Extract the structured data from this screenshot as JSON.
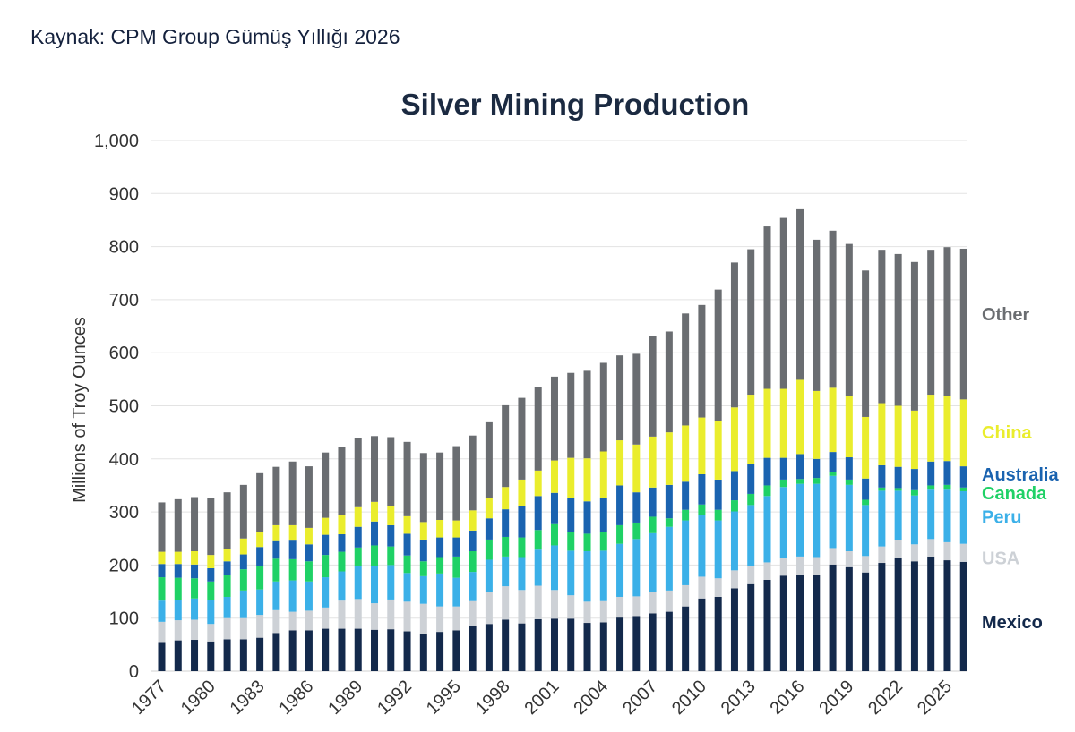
{
  "source_line": "Kaynak: CPM Group Gümüş Yıllığı 2026",
  "chart_data": {
    "type": "bar",
    "stacked": true,
    "title": "Silver Mining Production",
    "xlabel": "",
    "ylabel": "Millions of Troy Ounces",
    "ylim": [
      0,
      1000
    ],
    "yticks": [
      0,
      100,
      200,
      300,
      400,
      500,
      600,
      700,
      800,
      900,
      1000
    ],
    "ytick_labels": [
      "0",
      "100",
      "200",
      "300",
      "400",
      "500",
      "600",
      "700",
      "800",
      "900",
      "1,000"
    ],
    "grid": true,
    "legend_position": "right",
    "categories": [
      1977,
      1978,
      1979,
      1980,
      1981,
      1982,
      1983,
      1984,
      1985,
      1986,
      1987,
      1988,
      1989,
      1990,
      1991,
      1992,
      1993,
      1994,
      1995,
      1996,
      1997,
      1998,
      1999,
      2000,
      2001,
      2002,
      2003,
      2004,
      2005,
      2006,
      2007,
      2008,
      2009,
      2010,
      2011,
      2012,
      2013,
      2014,
      2015,
      2016,
      2017,
      2018,
      2019,
      2020,
      2021,
      2022,
      2023,
      2024,
      2025,
      2026
    ],
    "xtick_labels": [
      "1977",
      "1980",
      "1983",
      "1986",
      "1989",
      "1992",
      "1995",
      "1998",
      "2001",
      "2004",
      "2007",
      "2010",
      "2013",
      "2016",
      "2019",
      "2022",
      "2025"
    ],
    "series": [
      {
        "name": "Mexico",
        "color": "#13294b",
        "values": [
          55,
          58,
          59,
          56,
          60,
          60,
          63,
          72,
          77,
          77,
          80,
          80,
          80,
          78,
          79,
          75,
          71,
          74,
          77,
          86,
          89,
          97,
          90,
          98,
          99,
          99,
          91,
          92,
          101,
          104,
          109,
          112,
          122,
          137,
          140,
          156,
          164,
          172,
          180,
          181,
          182,
          201,
          196,
          186,
          204,
          213,
          207,
          216,
          209,
          206
        ]
      },
      {
        "name": "USA",
        "color": "#cdd1d6",
        "values": [
          38,
          38,
          38,
          33,
          40,
          40,
          43,
          43,
          35,
          37,
          40,
          53,
          56,
          50,
          56,
          56,
          56,
          48,
          45,
          46,
          60,
          63,
          63,
          63,
          54,
          44,
          40,
          40,
          39,
          37,
          40,
          40,
          40,
          41,
          35,
          34,
          34,
          33,
          34,
          35,
          33,
          31,
          30,
          31,
          31,
          34,
          32,
          33,
          34,
          34
        ]
      },
      {
        "name": "Peru",
        "color": "#3bb0e8",
        "values": [
          40,
          38,
          40,
          45,
          40,
          52,
          48,
          54,
          59,
          55,
          57,
          55,
          62,
          71,
          65,
          54,
          52,
          62,
          54,
          55,
          61,
          56,
          62,
          68,
          84,
          84,
          95,
          95,
          100,
          108,
          111,
          120,
          122,
          117,
          109,
          111,
          115,
          125,
          133,
          137,
          138,
          136,
          125,
          96,
          105,
          93,
          92,
          93,
          99,
          99
        ]
      },
      {
        "name": "Canada",
        "color": "#1fd166",
        "values": [
          44,
          42,
          38,
          35,
          42,
          40,
          44,
          43,
          40,
          38,
          42,
          37,
          35,
          38,
          35,
          33,
          28,
          31,
          40,
          39,
          38,
          37,
          37,
          37,
          40,
          36,
          33,
          36,
          35,
          31,
          31,
          16,
          20,
          19,
          20,
          21,
          21,
          20,
          14,
          9,
          11,
          8,
          10,
          10,
          6,
          5,
          10,
          8,
          9,
          7
        ]
      },
      {
        "name": "Australia",
        "color": "#1a63b0",
        "values": [
          25,
          26,
          26,
          25,
          25,
          28,
          36,
          33,
          35,
          32,
          38,
          33,
          39,
          45,
          40,
          41,
          41,
          37,
          36,
          39,
          40,
          52,
          59,
          64,
          59,
          63,
          61,
          63,
          75,
          57,
          55,
          63,
          53,
          57,
          57,
          55,
          57,
          52,
          41,
          47,
          36,
          37,
          42,
          40,
          42,
          40,
          40,
          45,
          45,
          40
        ]
      },
      {
        "name": "China",
        "color": "#eaed2d",
        "values": [
          23,
          23,
          25,
          25,
          23,
          30,
          29,
          30,
          29,
          31,
          32,
          37,
          37,
          37,
          36,
          33,
          33,
          33,
          32,
          38,
          39,
          42,
          50,
          48,
          61,
          76,
          81,
          88,
          85,
          90,
          96,
          99,
          106,
          107,
          110,
          120,
          130,
          130,
          130,
          140,
          128,
          121,
          115,
          116,
          117,
          115,
          110,
          126,
          122,
          126
        ]
      },
      {
        "name": "Other",
        "color": "#6a6d71",
        "values": [
          93,
          99,
          102,
          108,
          107,
          101,
          110,
          110,
          120,
          116,
          123,
          128,
          131,
          124,
          130,
          140,
          130,
          127,
          140,
          141,
          142,
          154,
          154,
          157,
          158,
          160,
          165,
          167,
          160,
          171,
          190,
          190,
          211,
          212,
          248,
          273,
          274,
          306,
          322,
          323,
          285,
          296,
          287,
          276,
          289,
          286,
          280,
          273,
          281,
          284
        ]
      }
    ]
  }
}
